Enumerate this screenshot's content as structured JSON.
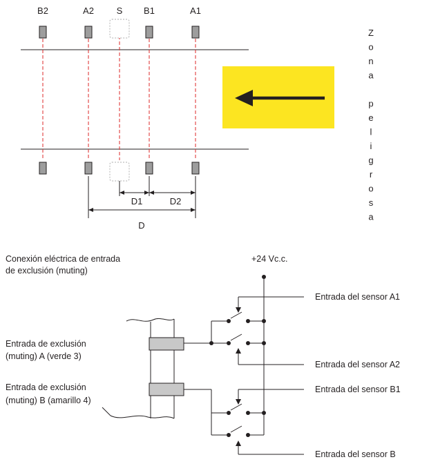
{
  "top": {
    "sensor_labels": {
      "b2": "B2",
      "a2": "A2",
      "s": "S",
      "b1": "B1",
      "a1": "A1"
    },
    "dimensions": {
      "d1": "D1",
      "d2": "D2",
      "d": "D"
    },
    "danger_zone_letters": [
      "Z",
      "o",
      "n",
      "a",
      "",
      "p",
      "e",
      "l",
      "i",
      "g",
      "r",
      "o",
      "s",
      "a"
    ],
    "arrow_panel_color": "#fce521",
    "beam_color": "#e03b3b"
  },
  "wiring": {
    "title_line1": "Conexión eléctrica de entrada",
    "title_line2": "de exclusión (muting)",
    "supply": "+24 Vc.c.",
    "input_a_line1": "Entrada de exclusión",
    "input_a_line2": "(muting) A (verde 3)",
    "input_b_line1": "Entrada de exclusión",
    "input_b_line2": "(muting) B (amarillo 4)",
    "sensor_a1": "Entrada del sensor A1",
    "sensor_a2": "Entrada del sensor A2",
    "sensor_b1": "Entrada del sensor B1",
    "sensor_b2": "Entrada del sensor B"
  }
}
